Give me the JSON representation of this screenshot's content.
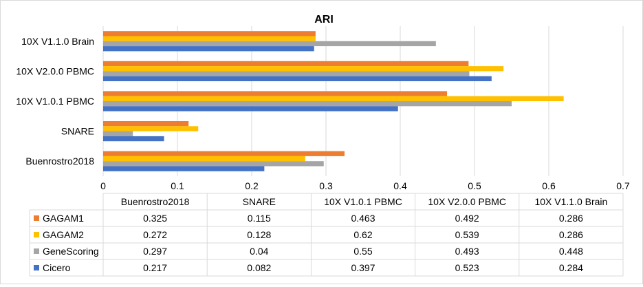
{
  "chart_data": {
    "type": "bar",
    "orientation": "horizontal",
    "title": "ARI",
    "xlim": [
      0,
      0.7
    ],
    "x_ticks": [
      "0",
      "0.1",
      "0.2",
      "0.3",
      "0.4",
      "0.5",
      "0.6",
      "0.7"
    ],
    "grid": "vertical",
    "categories": [
      "Buenrostro2018",
      "SNARE",
      "10X V1.0.1 PBMC",
      "10X V2.0.0 PBMC",
      "10X V1.1.0 Brain"
    ],
    "series": [
      {
        "name": "GAGAM1",
        "color": "#ED7D31",
        "values": [
          0.325,
          0.115,
          0.463,
          0.492,
          0.286
        ],
        "labels": [
          "0.325",
          "0.115",
          "0.463",
          "0.492",
          "0.286"
        ]
      },
      {
        "name": "GAGAM2",
        "color": "#FFC000",
        "values": [
          0.272,
          0.128,
          0.62,
          0.539,
          0.286
        ],
        "labels": [
          "0.272",
          "0.128",
          "0.62",
          "0.539",
          "0.286"
        ]
      },
      {
        "name": "GeneScoring",
        "color": "#A5A5A5",
        "values": [
          0.297,
          0.04,
          0.55,
          0.493,
          0.448
        ],
        "labels": [
          "0.297",
          "0.04",
          "0.55",
          "0.493",
          "0.448"
        ]
      },
      {
        "name": "Cicero",
        "color": "#4472C4",
        "values": [
          0.217,
          0.082,
          0.397,
          0.523,
          0.284
        ],
        "labels": [
          "0.217",
          "0.082",
          "0.397",
          "0.523",
          "0.284"
        ]
      }
    ],
    "legend": "data-table-below"
  }
}
